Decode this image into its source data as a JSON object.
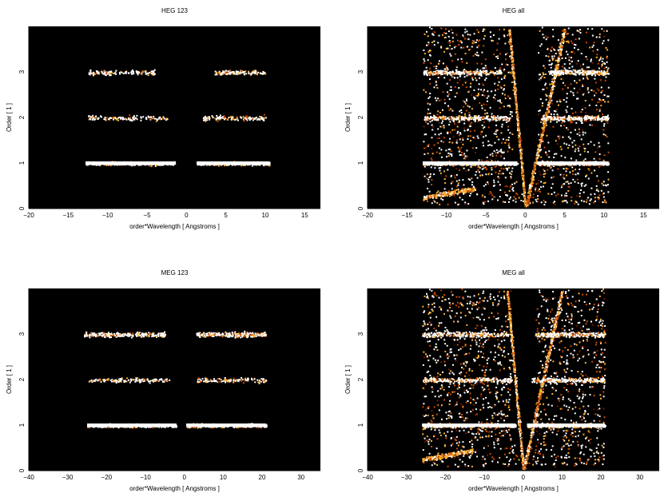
{
  "chart_data": [
    {
      "type": "heatmap",
      "title": "HEG 123",
      "xlabel": "order*Wavelength [ Angstroms ]",
      "ylabel": "Order [ 1 ]",
      "xlim": [
        -20,
        17
      ],
      "ylim": [
        0,
        4
      ],
      "xticks": [
        -20,
        -15,
        -10,
        -5,
        0,
        5,
        10,
        15
      ],
      "yticks": [
        0,
        1,
        2,
        3
      ],
      "background": "#000000",
      "colormap": [
        "#000000",
        "#6e1a00",
        "#c84a00",
        "#ffb030",
        "#ffffff"
      ],
      "bands": [
        {
          "order": 1,
          "x_ranges": [
            [
              -12.8,
              -1.5
            ],
            [
              1.3,
              10.5
            ]
          ],
          "intensity": "high"
        },
        {
          "order": 2,
          "x_ranges": [
            [
              -12.5,
              -2.5
            ],
            [
              2.0,
              10.0
            ]
          ],
          "intensity": "low"
        },
        {
          "order": 3,
          "x_ranges": [
            [
              -12.5,
              -4.0
            ],
            [
              3.5,
              10.0
            ]
          ],
          "intensity": "low"
        }
      ],
      "grid": false
    },
    {
      "type": "heatmap",
      "title": "HEG all",
      "xlabel": "order*Wavelength [ Angstroms ]",
      "ylabel": "Order [ 1 ]",
      "xlim": [
        -20,
        17
      ],
      "ylim": [
        0,
        4
      ],
      "xticks": [
        -20,
        -15,
        -10,
        -5,
        0,
        5,
        10,
        15
      ],
      "yticks": [
        0,
        1,
        2,
        3
      ],
      "background": "#000000",
      "colormap": [
        "#000000",
        "#6e1a00",
        "#c84a00",
        "#ffb030",
        "#ffffff"
      ],
      "bands": [
        {
          "order": 1,
          "x_ranges": [
            [
              -13,
              -1
            ],
            [
              1.5,
              10.5
            ]
          ],
          "intensity": "high"
        },
        {
          "order": 2,
          "x_ranges": [
            [
              -13,
              -2
            ],
            [
              2,
              10.5
            ]
          ],
          "intensity": "medium"
        },
        {
          "order": 3,
          "x_ranges": [
            [
              -13,
              -3
            ],
            [
              3,
              10.5
            ]
          ],
          "intensity": "medium"
        }
      ],
      "background_noise": "dense",
      "grid": false
    },
    {
      "type": "heatmap",
      "title": "MEG 123",
      "xlabel": "order*Wavelength [ Angstroms ]",
      "ylabel": "Order [ 1 ]",
      "xlim": [
        -40,
        35
      ],
      "ylim": [
        0,
        4
      ],
      "xticks": [
        -40,
        -30,
        -20,
        -10,
        0,
        10,
        20,
        30
      ],
      "yticks": [
        0,
        1,
        2,
        3
      ],
      "background": "#000000",
      "colormap": [
        "#000000",
        "#6e1a00",
        "#c84a00",
        "#ffb030",
        "#ffffff"
      ],
      "bands": [
        {
          "order": 1,
          "x_ranges": [
            [
              -25,
              -2
            ],
            [
              0.5,
              21
            ]
          ],
          "intensity": "high"
        },
        {
          "order": 2,
          "x_ranges": [
            [
              -25,
              -4
            ],
            [
              3,
              21
            ]
          ],
          "intensity": "low"
        },
        {
          "order": 3,
          "x_ranges": [
            [
              -26,
              -5
            ],
            [
              3,
              21
            ]
          ],
          "intensity": "medium"
        }
      ],
      "grid": false
    },
    {
      "type": "heatmap",
      "title": "MEG all",
      "xlabel": "order*Wavelength [ Angstroms ]",
      "ylabel": "Order [ 1 ]",
      "xlim": [
        -40,
        35
      ],
      "ylim": [
        0,
        4
      ],
      "xticks": [
        -40,
        -30,
        -20,
        -10,
        0,
        10,
        20,
        30
      ],
      "yticks": [
        0,
        1,
        2,
        3
      ],
      "background": "#000000",
      "colormap": [
        "#000000",
        "#6e1a00",
        "#c84a00",
        "#ffb030",
        "#ffffff"
      ],
      "bands": [
        {
          "order": 1,
          "x_ranges": [
            [
              -26,
              -2
            ],
            [
              1,
              21
            ]
          ],
          "intensity": "high"
        },
        {
          "order": 2,
          "x_ranges": [
            [
              -26,
              -3
            ],
            [
              2,
              21
            ]
          ],
          "intensity": "medium"
        },
        {
          "order": 3,
          "x_ranges": [
            [
              -26,
              -4
            ],
            [
              3,
              21
            ]
          ],
          "intensity": "medium"
        }
      ],
      "background_noise": "dense",
      "grid": false
    }
  ]
}
